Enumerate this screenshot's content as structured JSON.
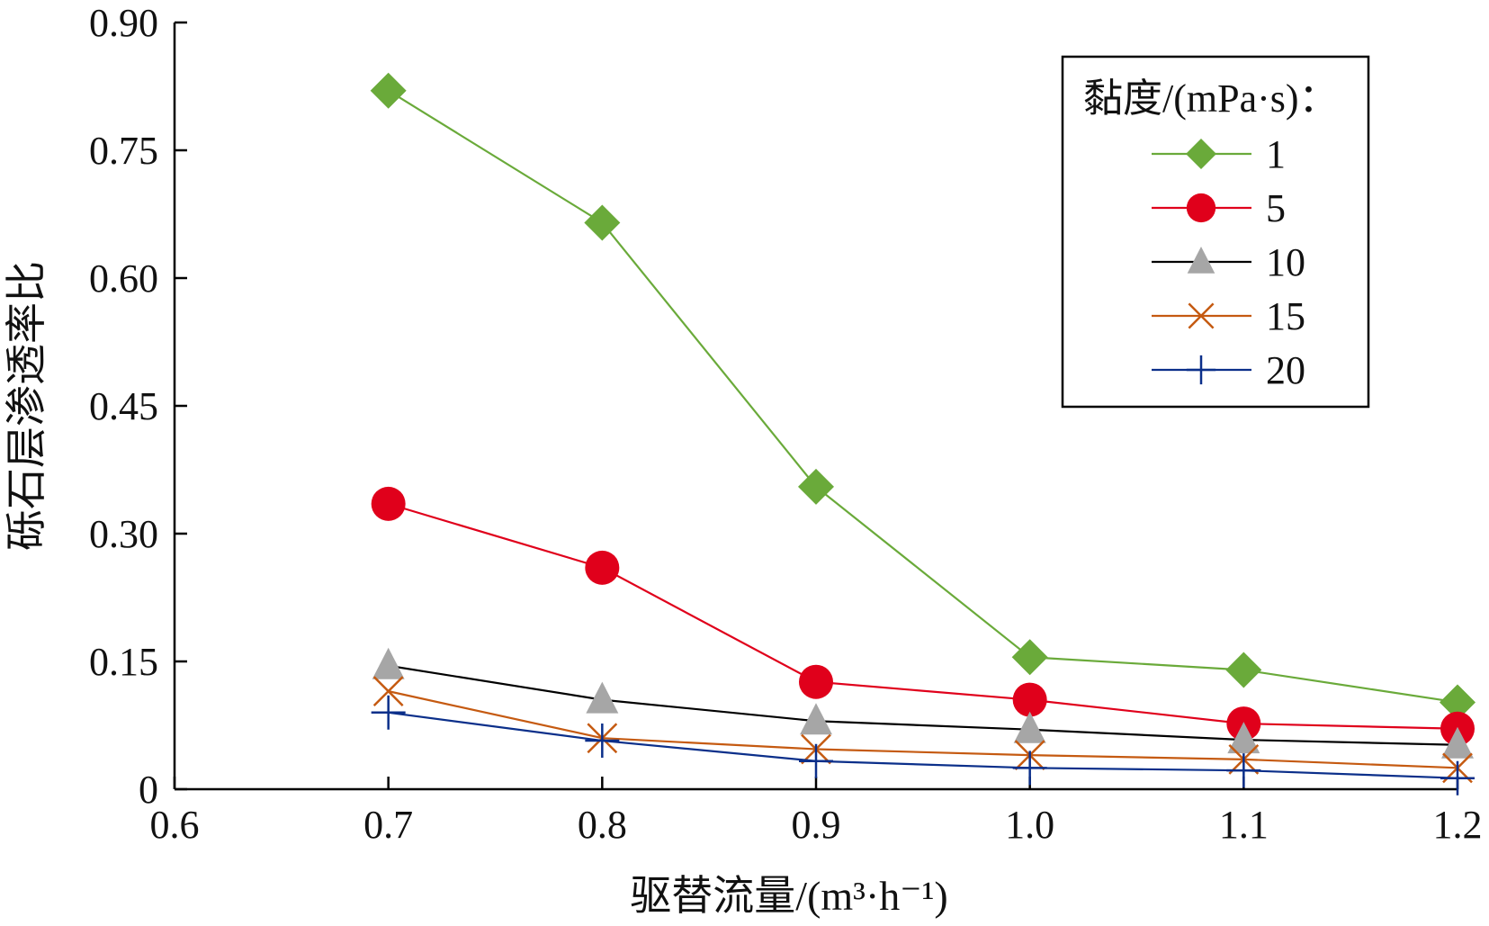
{
  "chart_data": {
    "type": "line",
    "xlabel": "驱替流量/(m³·h⁻¹)",
    "ylabel": "砾石层渗透率比",
    "x": [
      0.7,
      0.8,
      0.9,
      1.0,
      1.1,
      1.2
    ],
    "xlim": [
      0.6,
      1.2
    ],
    "ylim": [
      0,
      0.9
    ],
    "xticks": [
      "0.6",
      "0.7",
      "0.8",
      "0.9",
      "1.0",
      "1.1",
      "1.2"
    ],
    "yticks": [
      "0",
      "0.15",
      "0.30",
      "0.45",
      "0.60",
      "0.75",
      "0.90"
    ],
    "grid": false,
    "legend": {
      "title": "黏度/(mPa·s)：",
      "placement": "top-right"
    },
    "series": [
      {
        "name": "1",
        "color": "#6aaa3a",
        "marker": "diamond",
        "values": [
          0.82,
          0.665,
          0.355,
          0.155,
          0.14,
          0.102
        ]
      },
      {
        "name": "5",
        "color": "#e0001b",
        "marker": "circle",
        "values": [
          0.335,
          0.26,
          0.126,
          0.105,
          0.077,
          0.071
        ]
      },
      {
        "name": "10",
        "color": "#000000",
        "marker": "triangle",
        "markerColor": "#a6a6a6",
        "values": [
          0.145,
          0.105,
          0.08,
          0.07,
          0.058,
          0.052
        ]
      },
      {
        "name": "15",
        "color": "#c55a11",
        "marker": "x",
        "values": [
          0.115,
          0.06,
          0.047,
          0.04,
          0.035,
          0.025
        ]
      },
      {
        "name": "20",
        "color": "#0b2f8a",
        "marker": "plus",
        "values": [
          0.09,
          0.057,
          0.033,
          0.025,
          0.022,
          0.013
        ]
      }
    ]
  }
}
